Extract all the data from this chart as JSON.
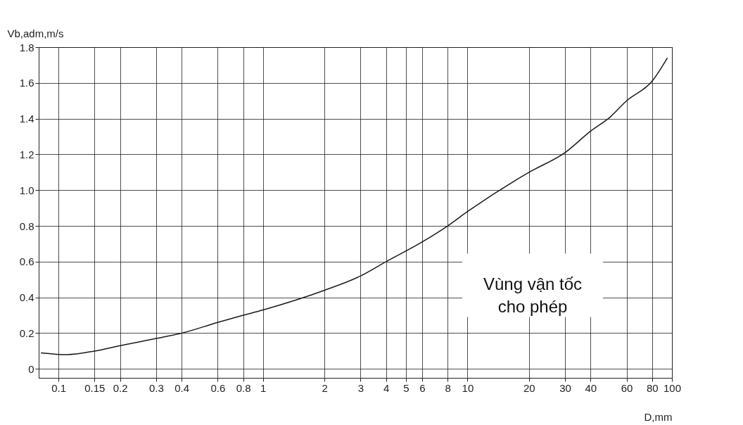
{
  "chart_data": {
    "type": "line",
    "xlabel": "D,mm",
    "ylabel": "Vb,adm,m/s",
    "x": [
      0.082,
      0.11,
      0.15,
      0.2,
      0.3,
      0.4,
      0.6,
      0.8,
      1,
      2,
      3,
      4,
      6,
      8,
      10,
      20,
      30,
      40,
      50,
      60,
      80,
      95
    ],
    "series": [
      {
        "color": "#1a1a1a",
        "values": [
          0.09,
          0.08,
          0.1,
          0.13,
          0.17,
          0.2,
          0.26,
          0.3,
          0.33,
          0.44,
          0.52,
          0.6,
          0.71,
          0.8,
          0.88,
          1.1,
          1.21,
          1.33,
          1.41,
          1.5,
          1.61,
          1.74
        ]
      }
    ],
    "log": "x",
    "xlim": [
      0.08,
      100
    ],
    "ylim": [
      -0.05,
      1.8
    ],
    "xticks": [
      0.1,
      0.15,
      0.2,
      0.3,
      0.4,
      0.6,
      0.8,
      1,
      2,
      3,
      4,
      5,
      6,
      8,
      10,
      20,
      30,
      40,
      60,
      80,
      100
    ],
    "yticks": [
      0,
      0.2,
      0.4,
      0.6,
      0.8,
      {
        "value": 1,
        "label": "1.0"
      },
      1.2,
      1.4,
      1.6,
      1.8
    ],
    "grid": true,
    "marker": "none",
    "line_style": "solid",
    "annotations": [
      "Vùng vận tốc\ncho phép"
    ]
  }
}
